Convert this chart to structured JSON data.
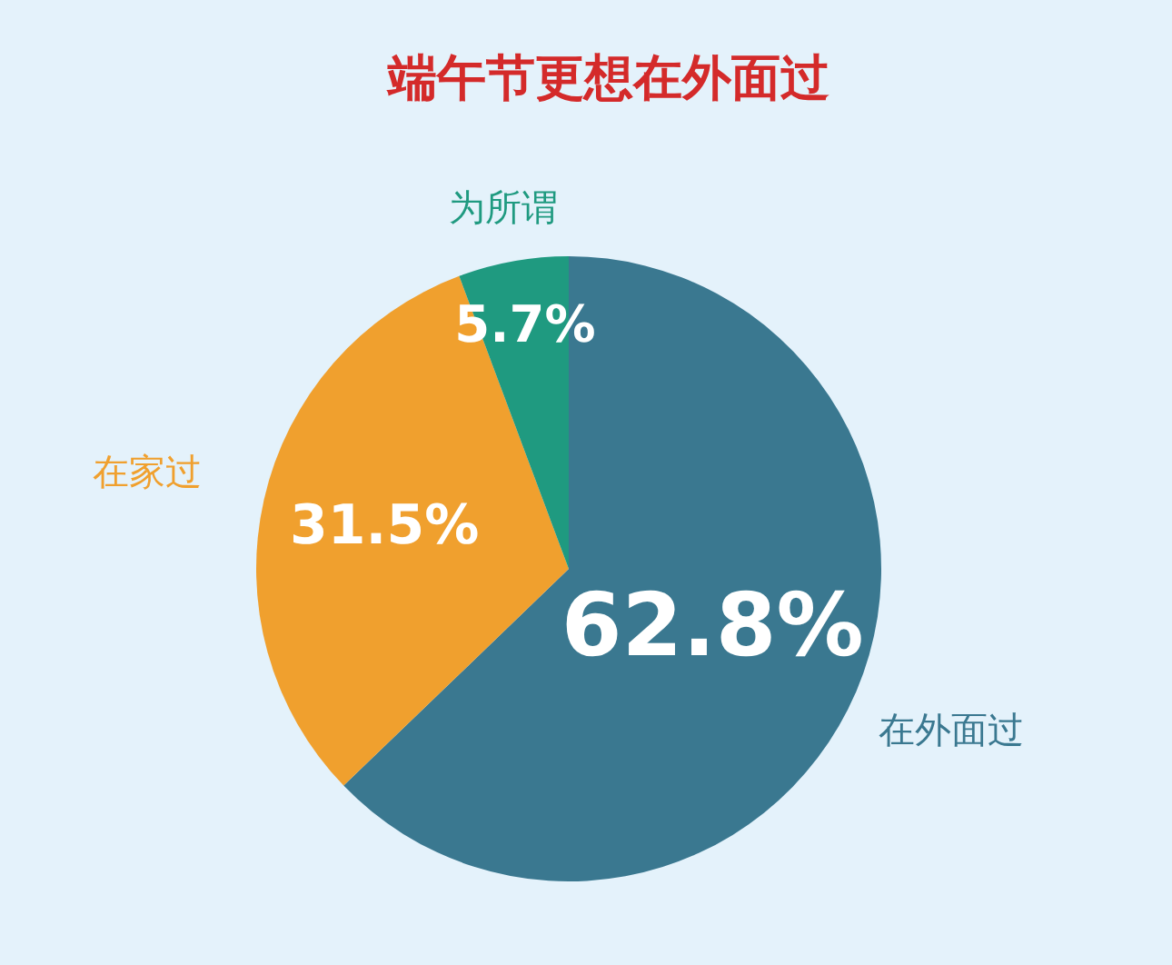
{
  "chart_data": {
    "type": "pie",
    "title": "端午节更想在外面过",
    "categories": [
      "在外面过",
      "在家过",
      "为所谓"
    ],
    "values": [
      62.8,
      31.5,
      5.7
    ],
    "colors": [
      "#3a7890",
      "#f0a02e",
      "#1f9a80"
    ],
    "value_labels": [
      "62.8%",
      "31.5%",
      "5.7%"
    ]
  }
}
